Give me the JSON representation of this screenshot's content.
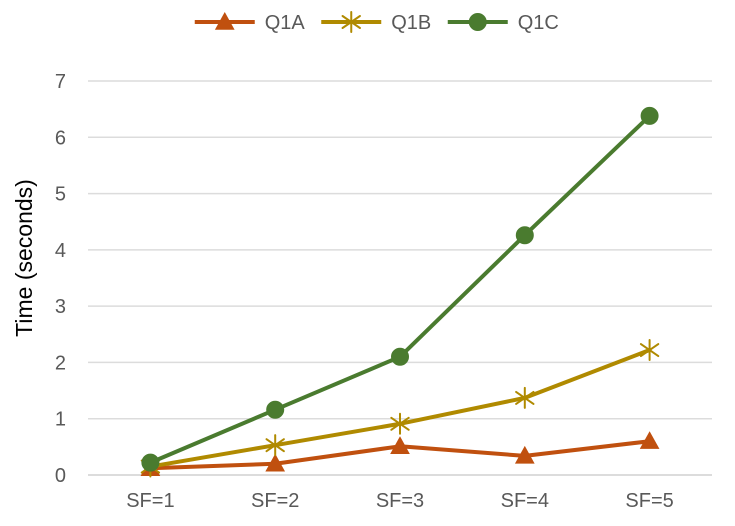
{
  "chart_data": {
    "type": "line",
    "title": "",
    "xlabel": "",
    "ylabel": "Time (seconds)",
    "categories": [
      "SF=1",
      "SF=2",
      "SF=3",
      "SF=4",
      "SF=5"
    ],
    "ylim": [
      0,
      7
    ],
    "yticks": [
      0,
      1,
      2,
      3,
      4,
      5,
      6,
      7
    ],
    "grid": true,
    "legend_position": "top",
    "series": [
      {
        "name": "Q1A",
        "color": "#C0500F",
        "marker": "triangle",
        "values": [
          0.12,
          0.2,
          0.51,
          0.34,
          0.6
        ]
      },
      {
        "name": "Q1B",
        "color": "#B08A00",
        "marker": "star",
        "values": [
          0.15,
          0.53,
          0.91,
          1.37,
          2.22
        ]
      },
      {
        "name": "Q1C",
        "color": "#4A7B2F",
        "marker": "circle",
        "values": [
          0.22,
          1.16,
          2.1,
          4.26,
          6.38
        ]
      }
    ]
  }
}
